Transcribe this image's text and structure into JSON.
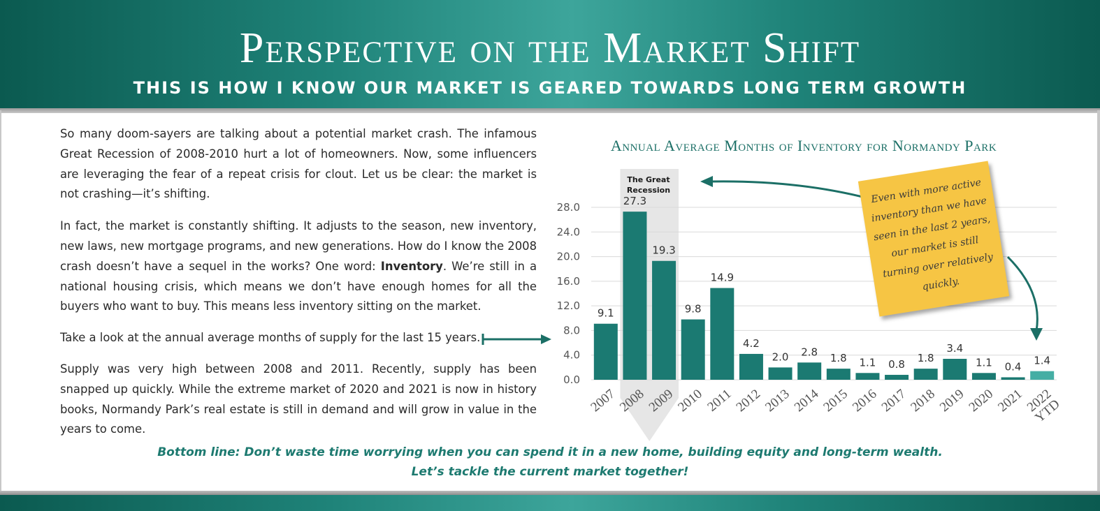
{
  "header": {
    "title": "Perspective on the Market Shift",
    "subtitle": "THIS IS HOW I KNOW OUR MARKET IS GEARED TOWARDS LONG TERM GROWTH"
  },
  "body": {
    "p1": "So many doom-sayers are talking about a potential market crash. The infamous Great Recession of 2008-2010 hurt a lot of homeowners. Now, some influencers are leveraging the fear of a repeat crisis for clout. Let us be clear: the market is not crashing—it’s shifting.",
    "p2_before": "In fact, the market is constantly shifting. It adjusts to the season, new inventory, new laws, new mortgage programs, and new generations. How do I know the 2008 crash doesn’t have a sequel in the works? One word: ",
    "p2_bold": "Inventory",
    "p2_after": ". We’re still in a national housing crisis, which means we don’t have enough homes for all the buyers who want to buy. This means less inventory sitting on the market.",
    "p3": "Take a look at the annual average months of supply for the last 15 years.",
    "p4": "Supply was very high between 2008 and 2011. Recently, supply has been snapped up quickly. While the extreme market of 2020 and 2021 is now in history books, Normandy Park’s real estate is still in demand and will grow in value in the years to come."
  },
  "bottom_line": {
    "line1": "Bottom line: Don’t waste time worrying when you can spend it in a new home, building equity and long-term wealth.",
    "line2": "Let’s tackle the current market together!"
  },
  "annotations": {
    "great_recession": "The Great Recession",
    "note": "Even with more active inventory than we have seen in the last 2 years, our market is still turning over relatively quickly."
  },
  "colors": {
    "bar": "#1b7a72",
    "bar_ytd": "#45aea4",
    "accent": "#1b6f66",
    "note": "#f6c544"
  },
  "chart_data": {
    "type": "bar",
    "title": "Annual Average Months of Inventory for Normandy Park",
    "categories": [
      "2007",
      "2008",
      "2009",
      "2010",
      "2011",
      "2012",
      "2013",
      "2014",
      "2015",
      "2016",
      "2017",
      "2018",
      "2019",
      "2020",
      "2021",
      "2022 YTD"
    ],
    "values": [
      9.1,
      27.3,
      19.3,
      9.8,
      14.9,
      4.2,
      2.0,
      2.8,
      1.8,
      1.1,
      0.8,
      1.8,
      3.4,
      1.1,
      0.4,
      1.4
    ],
    "value_labels": [
      "9.1",
      "27.3",
      "19.3",
      "9.8",
      "14.9",
      "4.2",
      "2.0",
      "2.8",
      "1.8",
      "1.1",
      "0.8",
      "1.8",
      "3.4",
      "1.1",
      "0.4",
      "1.4"
    ],
    "y_ticks": [
      "0.0",
      "4.0",
      "8.0",
      "12.0",
      "16.0",
      "20.0",
      "24.0",
      "28.0"
    ],
    "ylim": [
      0,
      28
    ],
    "grid": true,
    "xlabel": "",
    "ylabel": ""
  }
}
